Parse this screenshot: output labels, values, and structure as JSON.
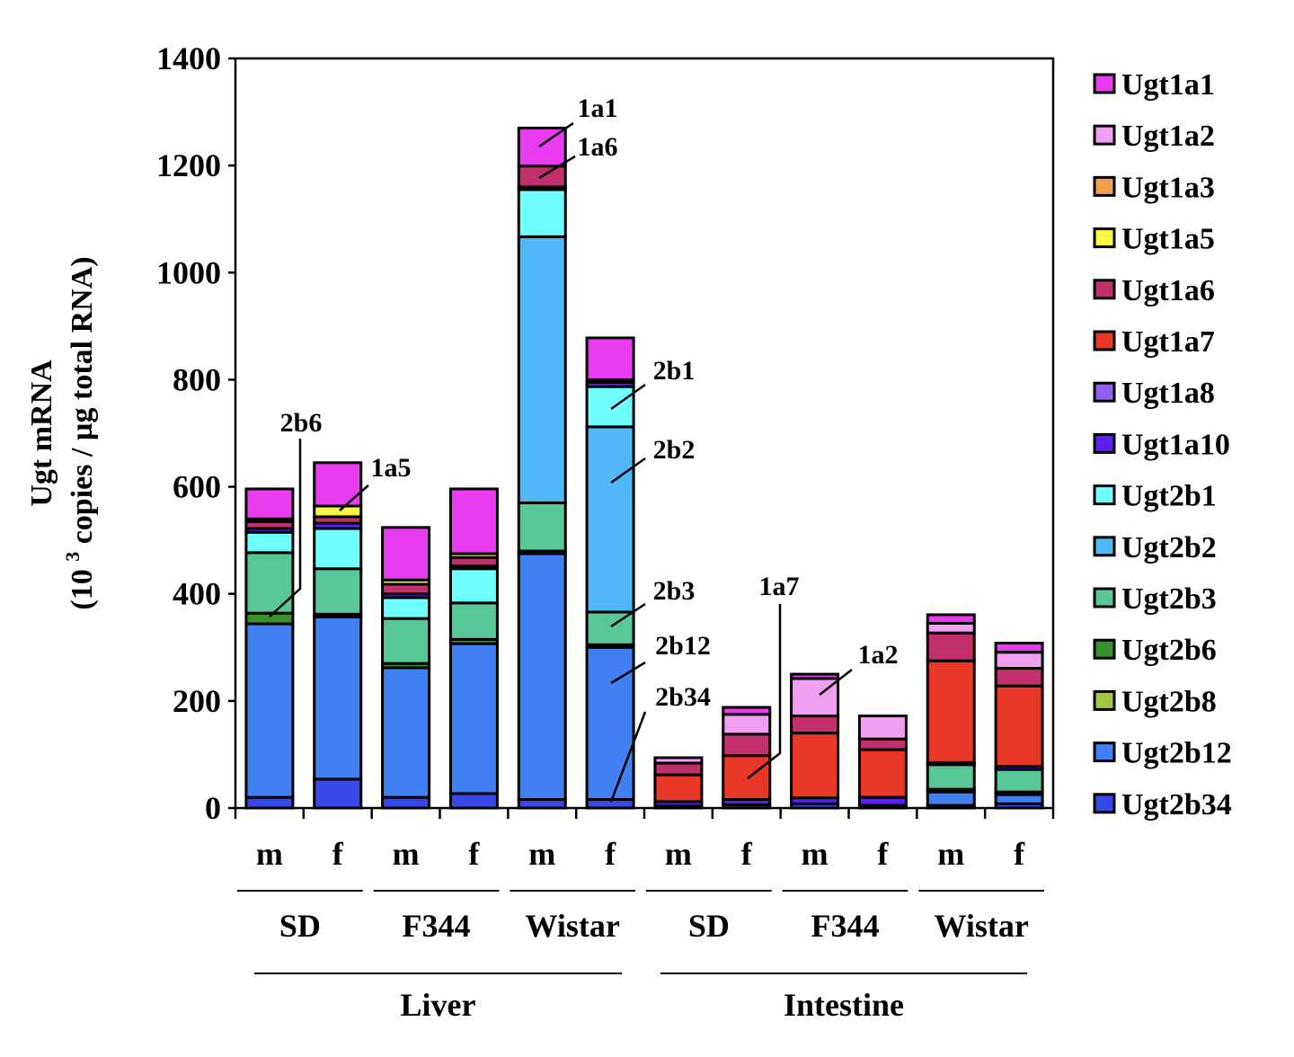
{
  "chart_data": {
    "type": "bar",
    "stacked": true,
    "ylabel_line1": "Ugt mRNA",
    "ylabel_line2_pre": "(10 ",
    "ylabel_line2_sup": "3",
    "ylabel_line2_post": " copies / µg total RNA)",
    "ylim": [
      0,
      1400
    ],
    "yticks": [
      "0",
      "200",
      "400",
      "600",
      "800",
      "1000",
      "1200",
      "1400"
    ],
    "grid": false,
    "legend_position": "right",
    "categories": [
      "m",
      "f",
      "m",
      "f",
      "m",
      "f",
      "m",
      "f",
      "m",
      "f",
      "m",
      "f"
    ],
    "strains": [
      "SD",
      "F344",
      "Wistar",
      "SD",
      "F344",
      "Wistar"
    ],
    "tissues": [
      "Liver",
      "Intestine"
    ],
    "series": [
      {
        "name": "Ugt1a1",
        "color": "#e83cf0",
        "values": [
          56,
          81,
          98,
          121,
          71,
          78,
          0,
          13,
          8,
          0,
          16,
          17
        ]
      },
      {
        "name": "Ugt1a2",
        "color": "#f0a0f0",
        "values": [
          0,
          0,
          0,
          0,
          0,
          0,
          10,
          37,
          70,
          43,
          18,
          30
        ]
      },
      {
        "name": "Ugt1a3",
        "color": "#f0a050",
        "values": [
          0,
          0,
          0,
          0,
          0,
          0,
          0,
          0,
          0,
          0,
          0,
          0
        ]
      },
      {
        "name": "Ugt1a5",
        "color": "#f8f840",
        "values": [
          5,
          20,
          8,
          7,
          0,
          0,
          0,
          0,
          0,
          0,
          0,
          0
        ]
      },
      {
        "name": "Ugt1a6",
        "color": "#c0306a",
        "values": [
          13,
          12,
          18,
          16,
          39,
          5,
          22,
          40,
          32,
          20,
          52,
          33
        ]
      },
      {
        "name": "Ugt1a7",
        "color": "#e83828",
        "values": [
          0,
          0,
          0,
          0,
          0,
          0,
          50,
          82,
          121,
          89,
          190,
          150
        ]
      },
      {
        "name": "Ugt1a8",
        "color": "#9060f0",
        "values": [
          0,
          0,
          0,
          0,
          0,
          0,
          0,
          0,
          0,
          0,
          0,
          0
        ]
      },
      {
        "name": "Ugt1a10",
        "color": "#5a20f0",
        "values": [
          7,
          10,
          7,
          5,
          5,
          8,
          8,
          10,
          11,
          15,
          4,
          6
        ]
      },
      {
        "name": "Ugt2b1",
        "color": "#70ffff",
        "values": [
          38,
          75,
          39,
          64,
          88,
          75,
          0,
          0,
          0,
          0,
          0,
          0
        ]
      },
      {
        "name": "Ugt2b2",
        "color": "#50b8f8",
        "values": [
          0,
          0,
          0,
          0,
          497,
          346,
          0,
          0,
          0,
          0,
          0,
          0
        ]
      },
      {
        "name": "Ugt2b3",
        "color": "#58c898",
        "values": [
          113,
          85,
          84,
          68,
          90,
          61,
          0,
          0,
          0,
          0,
          46,
          42
        ]
      },
      {
        "name": "Ugt2b6",
        "color": "#389030",
        "values": [
          20,
          5,
          8,
          8,
          5,
          5,
          0,
          0,
          0,
          0,
          5,
          5
        ]
      },
      {
        "name": "Ugt2b8",
        "color": "#a0c840",
        "values": [
          0,
          0,
          0,
          0,
          0,
          0,
          0,
          0,
          0,
          0,
          0,
          0
        ]
      },
      {
        "name": "Ugt2b12",
        "color": "#4080f0",
        "values": [
          324,
          303,
          242,
          280,
          459,
          284,
          0,
          0,
          0,
          0,
          25,
          17
        ]
      },
      {
        "name": "Ugt2b34",
        "color": "#3848e8",
        "values": [
          20,
          54,
          20,
          27,
          16,
          16,
          4,
          6,
          8,
          5,
          5,
          8
        ]
      }
    ],
    "annotations": [
      "2b6",
      "1a5",
      "1a1",
      "1a6",
      "2b1",
      "2b2",
      "2b3",
      "2b12",
      "2b34",
      "1a7",
      "1a2"
    ]
  }
}
